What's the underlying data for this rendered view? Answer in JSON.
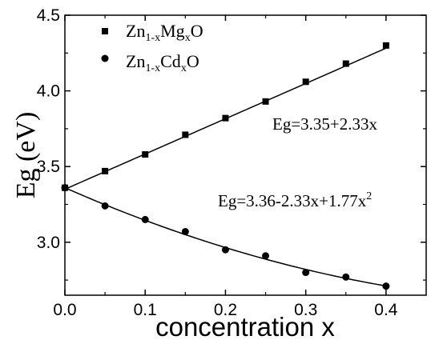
{
  "chart_data": {
    "type": "scatter",
    "xlabel": "concentration x",
    "ylabel": "Eg (eV)",
    "xlim": [
      0.0,
      0.45
    ],
    "ylim": [
      2.65,
      4.5
    ],
    "xticks": [
      "0.0",
      "0.1",
      "0.2",
      "0.3",
      "0.4"
    ],
    "yticks": [
      "3.0",
      "3.5",
      "4.0",
      "4.5"
    ],
    "grid": false,
    "legend_position": "top-left",
    "series": [
      {
        "name": "Zn1-xMgxO",
        "name_parts": {
          "base1": "Zn",
          "sub1": "1-x",
          "base2": "Mg",
          "sub2": "x",
          "base3": "O"
        },
        "marker": "square",
        "x": [
          0.0,
          0.05,
          0.1,
          0.15,
          0.2,
          0.25,
          0.3,
          0.35,
          0.4
        ],
        "y": [
          3.36,
          3.47,
          3.58,
          3.71,
          3.82,
          3.93,
          4.06,
          4.18,
          4.3
        ],
        "fit": {
          "type": "linear",
          "coefficients": [
            3.35,
            2.33
          ]
        }
      },
      {
        "name": "Zn1-xCdxO",
        "name_parts": {
          "base1": "Zn",
          "sub1": "1-x",
          "base2": "Cd",
          "sub2": "x",
          "base3": "O"
        },
        "marker": "circle",
        "x": [
          0.0,
          0.05,
          0.1,
          0.15,
          0.2,
          0.25,
          0.3,
          0.35,
          0.4
        ],
        "y": [
          3.36,
          3.24,
          3.15,
          3.07,
          2.95,
          2.91,
          2.8,
          2.77,
          2.71
        ],
        "fit": {
          "type": "quadratic",
          "coefficients": [
            3.36,
            -2.33,
            1.77
          ]
        }
      }
    ],
    "annotations": [
      {
        "text": "Eg=3.35+2.33x"
      },
      {
        "text_main": "Eg=3.36-2.33x+1.77x",
        "superscript": "2"
      }
    ]
  }
}
